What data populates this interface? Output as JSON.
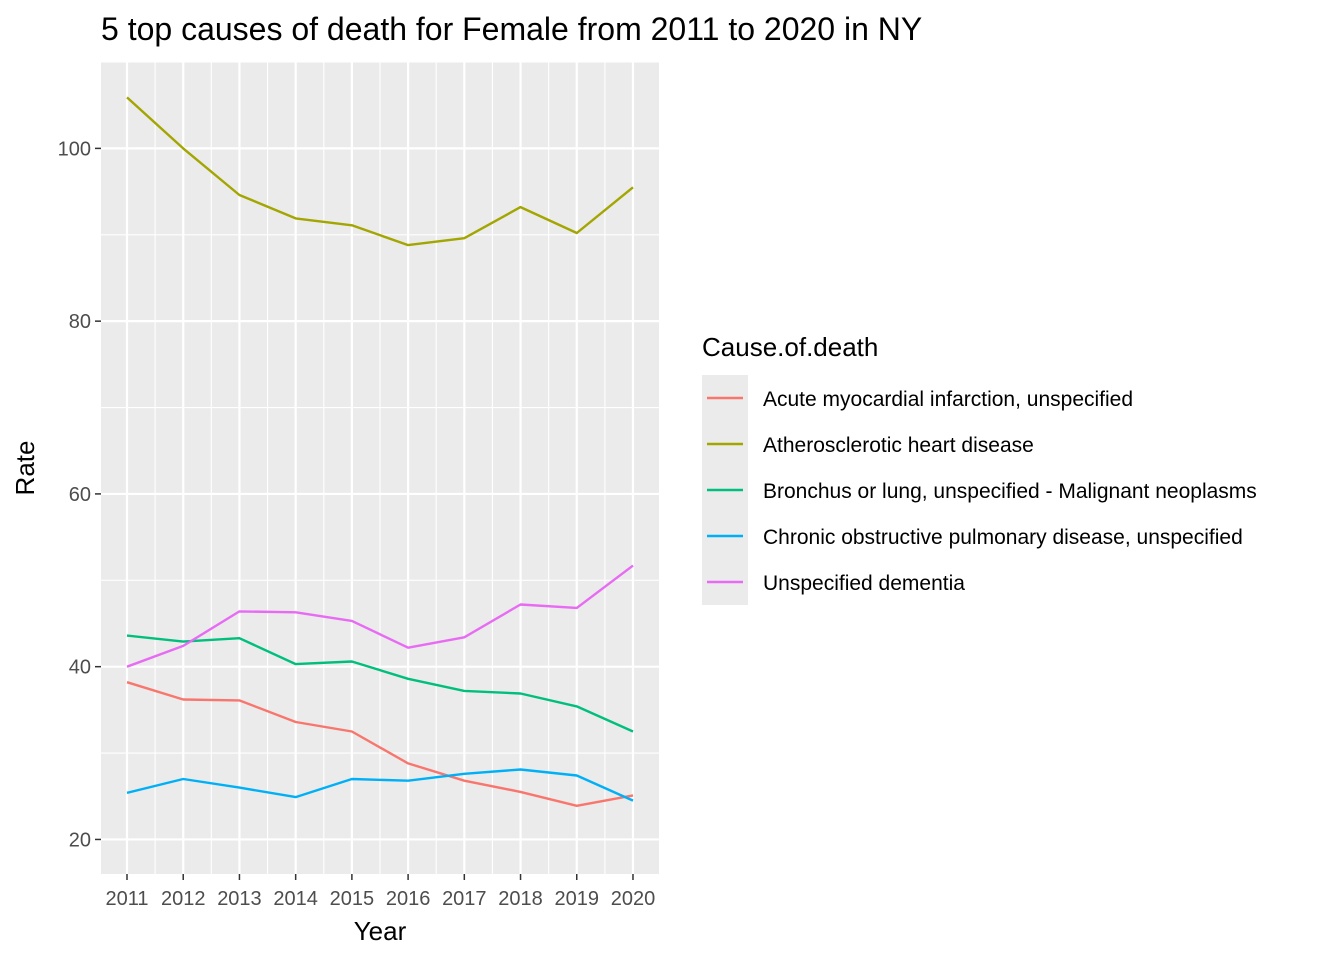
{
  "chart_data": {
    "type": "line",
    "title": "5 top causes of death for Female from 2011 to 2020 in NY",
    "xlabel": "Year",
    "ylabel": "Rate",
    "legend_title": "Cause.of.death",
    "legend_position": "right",
    "grid": true,
    "x": [
      "2011",
      "2012",
      "2013",
      "2014",
      "2015",
      "2016",
      "2017",
      "2018",
      "2019",
      "2020"
    ],
    "y_ticks": [
      "20",
      "40",
      "60",
      "80",
      "100"
    ],
    "ylim": [
      16,
      110
    ],
    "series": [
      {
        "name": "Acute myocardial infarction, unspecified",
        "color": "#F8766D",
        "values": [
          38.2,
          36.2,
          36.1,
          33.6,
          32.5,
          28.8,
          26.8,
          25.5,
          23.9,
          25.1
        ]
      },
      {
        "name": "Atherosclerotic heart disease",
        "color": "#A3A500",
        "values": [
          105.9,
          100.0,
          94.6,
          91.9,
          91.1,
          88.8,
          89.6,
          93.2,
          90.2,
          95.5
        ]
      },
      {
        "name": "Bronchus or lung, unspecified - Malignant neoplasms",
        "color": "#00BF7D",
        "values": [
          43.6,
          42.9,
          43.3,
          40.3,
          40.6,
          38.6,
          37.2,
          36.9,
          35.4,
          32.5
        ]
      },
      {
        "name": "Chronic obstructive pulmonary disease, unspecified",
        "color": "#00B0F6",
        "values": [
          25.4,
          27.0,
          26.0,
          24.9,
          27.0,
          26.8,
          27.6,
          28.1,
          27.4,
          24.5
        ]
      },
      {
        "name": "Unspecified dementia",
        "color": "#E76BF3",
        "values": [
          40.0,
          42.4,
          46.4,
          46.3,
          45.3,
          42.2,
          43.4,
          47.2,
          46.8,
          51.7
        ]
      }
    ]
  }
}
